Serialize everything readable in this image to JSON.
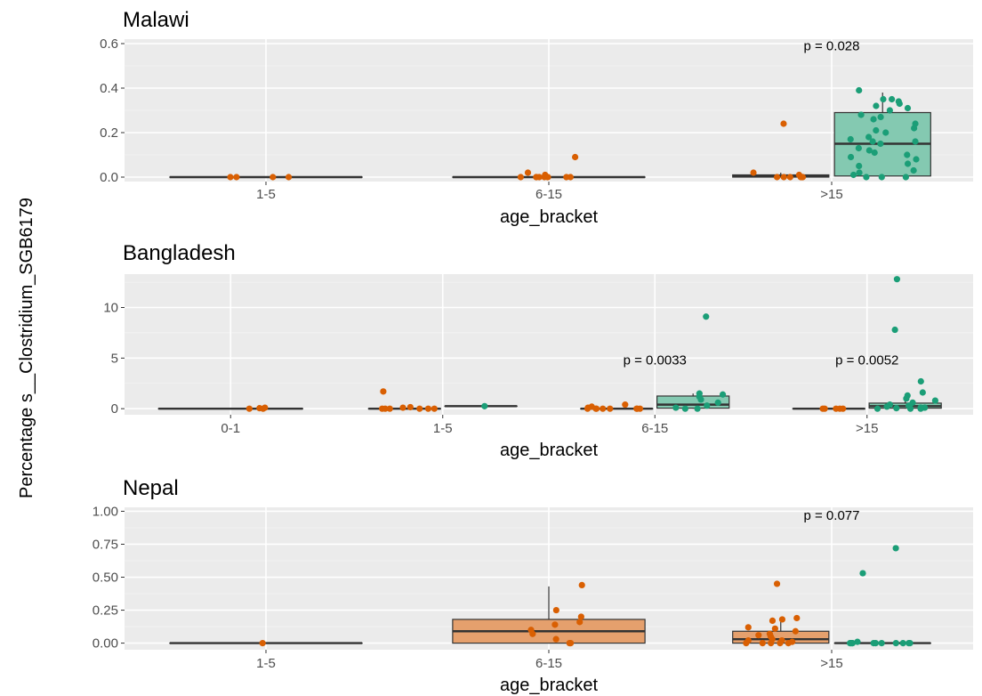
{
  "chart_data": {
    "type": "box",
    "ylabel": "Percentage s__Clostridium_SGB6179",
    "colors": {
      "orange": "#d95f02",
      "green": "#1b9e77",
      "orange_fill": "#e5a06d",
      "green_fill": "#84c9b1",
      "panel_bg": "#ebebeb"
    },
    "panels": [
      {
        "title": "Malawi",
        "xlabel": "age_bracket",
        "categories": [
          "1-5",
          "6-15",
          ">15"
        ],
        "ylim": [
          -0.02,
          0.62
        ],
        "yticks": [
          0.0,
          0.2,
          0.4,
          0.6
        ],
        "ytick_labels": [
          "0.0",
          "0.2",
          "0.4",
          "0.6"
        ],
        "groups": [
          {
            "cat": 0,
            "slot": "single",
            "color": "orange",
            "filled": false,
            "box": {
              "q1": 0,
              "median": 0,
              "q3": 0,
              "whisker_lo": 0,
              "whisker_hi": 0
            },
            "points": [
              0,
              0,
              0,
              0
            ]
          },
          {
            "cat": 1,
            "slot": "single",
            "color": "orange",
            "filled": false,
            "box": {
              "q1": 0,
              "median": 0,
              "q3": 0,
              "whisker_lo": 0,
              "whisker_hi": 0
            },
            "points": [
              0,
              0,
              0,
              0,
              0.01,
              0.02,
              0.09,
              0,
              0,
              0,
              0,
              0
            ]
          },
          {
            "cat": 2,
            "slot": "left",
            "color": "orange",
            "filled": false,
            "box": {
              "q1": 0,
              "median": 0.005,
              "q3": 0.01,
              "whisker_lo": 0,
              "whisker_hi": 0.02
            },
            "points": [
              0,
              0,
              0,
              0.01,
              0.02,
              0.24,
              0,
              0,
              0
            ]
          },
          {
            "cat": 2,
            "slot": "right",
            "color": "green",
            "filled": true,
            "box": {
              "q1": 0.005,
              "median": 0.15,
              "q3": 0.29,
              "whisker_lo": 0,
              "whisker_hi": 0.38
            },
            "points": [
              0.34,
              0.35,
              0.33,
              0.35,
              0.32,
              0.3,
              0.28,
              0.26,
              0.31,
              0.39,
              0.24,
              0.22,
              0.2,
              0.17,
              0.16,
              0.15,
              0.16,
              0.13,
              0.11,
              0.1,
              0.09,
              0.08,
              0.05,
              0.03,
              0.01,
              0,
              0,
              0,
              0.02,
              0.06,
              0.12,
              0.18,
              0.21,
              0.27
            ]
          }
        ],
        "annotations": [
          {
            "cat": 2,
            "text": "p = 0.028",
            "y": 0.59
          }
        ]
      },
      {
        "title": "Bangladesh",
        "xlabel": "age_bracket",
        "categories": [
          "0-1",
          "1-5",
          "6-15",
          ">15"
        ],
        "ylim": [
          -0.6,
          13.3
        ],
        "yticks": [
          0,
          5,
          10
        ],
        "ytick_labels": [
          "0",
          "5",
          "10"
        ],
        "groups": [
          {
            "cat": 0,
            "slot": "single",
            "color": "orange",
            "filled": false,
            "box": {
              "q1": 0,
              "median": 0,
              "q3": 0,
              "whisker_lo": 0,
              "whisker_hi": 0
            },
            "points": [
              0,
              0.05,
              0.1,
              0
            ]
          },
          {
            "cat": 1,
            "slot": "left",
            "color": "orange",
            "filled": false,
            "box": {
              "q1": 0,
              "median": 0,
              "q3": 0,
              "whisker_lo": 0,
              "whisker_hi": 0
            },
            "points": [
              1.7,
              0,
              0,
              0,
              0,
              0,
              0,
              0.1,
              0.15
            ]
          },
          {
            "cat": 1,
            "slot": "right",
            "color": "green",
            "filled": false,
            "box": {
              "q1": 0.25,
              "median": 0.25,
              "q3": 0.25,
              "whisker_lo": 0.25,
              "whisker_hi": 0.25
            },
            "points": [
              0.25
            ]
          },
          {
            "cat": 2,
            "slot": "left",
            "color": "orange",
            "filled": false,
            "box": {
              "q1": 0,
              "median": 0,
              "q3": 0,
              "whisker_lo": 0,
              "whisker_hi": 0
            },
            "points": [
              0.4,
              0.2,
              0.1,
              0,
              0,
              0,
              0,
              0,
              0,
              0,
              0
            ]
          },
          {
            "cat": 2,
            "slot": "right",
            "color": "green",
            "filled": true,
            "box": {
              "q1": 0.05,
              "median": 0.4,
              "q3": 1.25,
              "whisker_lo": 0,
              "whisker_hi": 1.5
            },
            "points": [
              9.1,
              1.5,
              1.4,
              1.2,
              0.9,
              0.6,
              0.3,
              0.1,
              0,
              0
            ]
          },
          {
            "cat": 3,
            "slot": "left",
            "color": "orange",
            "filled": false,
            "box": {
              "q1": 0,
              "median": 0,
              "q3": 0,
              "whisker_lo": 0,
              "whisker_hi": 0
            },
            "points": [
              0,
              0,
              0,
              0,
              0
            ]
          },
          {
            "cat": 3,
            "slot": "right",
            "color": "green",
            "filled": true,
            "box": {
              "q1": 0.05,
              "median": 0.25,
              "q3": 0.55,
              "whisker_lo": 0,
              "whisker_hi": 1.2
            },
            "points": [
              12.8,
              7.8,
              2.7,
              1.6,
              1.3,
              1.0,
              0.8,
              0.6,
              0.4,
              0.3,
              0.2,
              0.1,
              0.05,
              0,
              0,
              0,
              0.1,
              0.2
            ]
          }
        ],
        "annotations": [
          {
            "cat": 2,
            "text": "p = 0.0033",
            "y": 4.8
          },
          {
            "cat": 3,
            "text": "p = 0.0052",
            "y": 4.8
          }
        ]
      },
      {
        "title": "Nepal",
        "xlabel": "age_bracket",
        "categories": [
          "1-5",
          "6-15",
          ">15"
        ],
        "ylim": [
          -0.05,
          1.03
        ],
        "yticks": [
          0.0,
          0.25,
          0.5,
          0.75,
          1.0
        ],
        "ytick_labels": [
          "0.00",
          "0.25",
          "0.50",
          "0.75",
          "1.00"
        ],
        "groups": [
          {
            "cat": 0,
            "slot": "single",
            "color": "orange",
            "filled": false,
            "box": {
              "q1": 0,
              "median": 0,
              "q3": 0,
              "whisker_lo": 0,
              "whisker_hi": 0
            },
            "points": [
              0
            ]
          },
          {
            "cat": 1,
            "slot": "single",
            "color": "orange",
            "filled": true,
            "box": {
              "q1": 0,
              "median": 0.09,
              "q3": 0.18,
              "whisker_lo": 0,
              "whisker_hi": 0.43
            },
            "points": [
              0.44,
              0.25,
              0.2,
              0.16,
              0.14,
              0.1,
              0.07,
              0.03,
              0,
              0
            ]
          },
          {
            "cat": 2,
            "slot": "left",
            "color": "orange",
            "filled": true,
            "box": {
              "q1": 0,
              "median": 0.03,
              "q3": 0.09,
              "whisker_lo": 0,
              "whisker_hi": 0.18
            },
            "points": [
              0.45,
              0.19,
              0.18,
              0.17,
              0.12,
              0.11,
              0.09,
              0.07,
              0.06,
              0.05,
              0.03,
              0.02,
              0.02,
              0.01,
              0,
              0,
              0,
              0,
              0
            ]
          },
          {
            "cat": 2,
            "slot": "right",
            "color": "green",
            "filled": false,
            "box": {
              "q1": 0,
              "median": 0,
              "q3": 0,
              "whisker_lo": 0,
              "whisker_hi": 0
            },
            "points": [
              0.72,
              0.53,
              0.01,
              0,
              0,
              0,
              0,
              0,
              0,
              0,
              0,
              0,
              0,
              0
            ]
          }
        ],
        "annotations": [
          {
            "cat": 2,
            "text": "p = 0.077",
            "y": 0.97
          }
        ]
      }
    ]
  }
}
